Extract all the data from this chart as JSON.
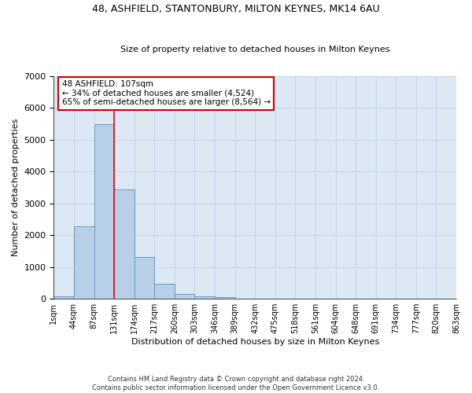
{
  "title": "48, ASHFIELD, STANTONBURY, MILTON KEYNES, MK14 6AU",
  "subtitle": "Size of property relative to detached houses in Milton Keynes",
  "xlabel": "Distribution of detached houses by size in Milton Keynes",
  "ylabel": "Number of detached properties",
  "footer_line1": "Contains HM Land Registry data © Crown copyright and database right 2024.",
  "footer_line2": "Contains public sector information licensed under the Open Government Licence v3.0.",
  "bin_labels": [
    "1sqm",
    "44sqm",
    "87sqm",
    "131sqm",
    "174sqm",
    "217sqm",
    "260sqm",
    "303sqm",
    "346sqm",
    "389sqm",
    "432sqm",
    "475sqm",
    "518sqm",
    "561sqm",
    "604sqm",
    "648sqm",
    "691sqm",
    "734sqm",
    "777sqm",
    "820sqm",
    "863sqm"
  ],
  "bar_values": [
    80,
    2280,
    5480,
    3440,
    1310,
    470,
    155,
    85,
    45,
    0,
    0,
    0,
    0,
    0,
    0,
    0,
    0,
    0,
    0,
    0
  ],
  "bar_color": "#b8cfe8",
  "bar_edge_color": "#6699cc",
  "grid_color": "#c8d8e8",
  "background_color": "#dce8f4",
  "red_line_bin_index": 3,
  "annotation_text": "48 ASHFIELD: 107sqm\n← 34% of detached houses are smaller (4,524)\n65% of semi-detached houses are larger (8,564) →",
  "annotation_box_color": "#ffffff",
  "annotation_box_edge": "#cc0000",
  "ylim": [
    0,
    7000
  ],
  "yticks": [
    0,
    1000,
    2000,
    3000,
    4000,
    5000,
    6000,
    7000
  ]
}
